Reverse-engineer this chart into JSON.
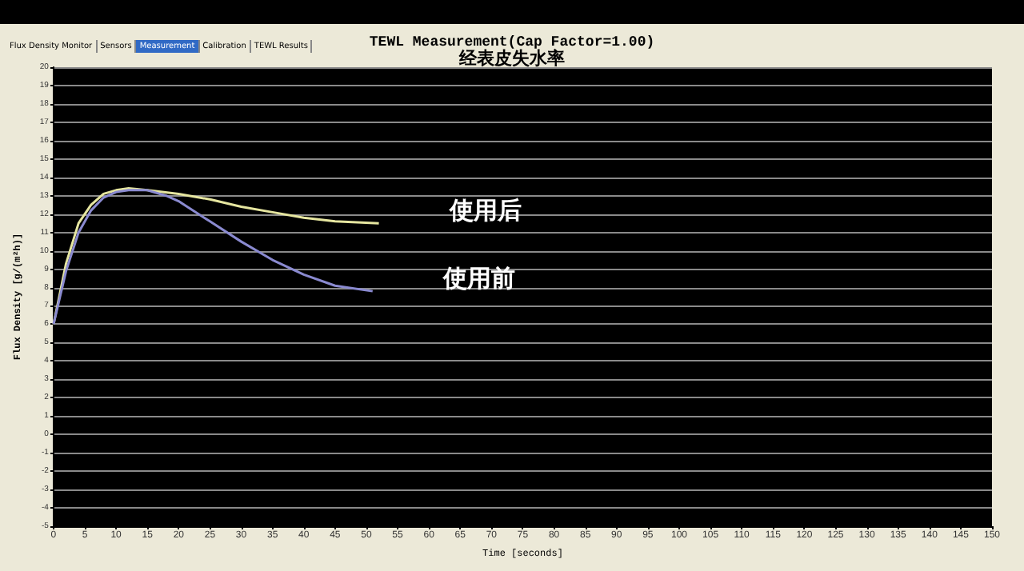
{
  "chart_data": {
    "type": "line",
    "title": "TEWL Measurement(Cap Factor=1.00)",
    "subtitle": "经表皮失水率",
    "xlabel": "Time [seconds]",
    "ylabel": "Flux Density [g/(m²h)]",
    "annotations": [
      "Flux Density Monitor",
      "Sensors",
      "Measurement",
      "Calibration",
      "TEWL Results"
    ],
    "xlim": [
      0,
      150
    ],
    "xticks": [
      0,
      5,
      10,
      15,
      20,
      25,
      30,
      35,
      40,
      45,
      50,
      55,
      60,
      65,
      70,
      75,
      80,
      85,
      90,
      95,
      100,
      105,
      110,
      115,
      120,
      125,
      130,
      135,
      140,
      145,
      150
    ],
    "ylim": [
      -5,
      20
    ],
    "yticks": [
      -5,
      -4,
      -3,
      -2,
      -1,
      0,
      1,
      2,
      3,
      4,
      5,
      6,
      7,
      8,
      9,
      10,
      11,
      12,
      13,
      14,
      15,
      16,
      17,
      18,
      19,
      20
    ],
    "grid": "y",
    "marker": "none",
    "series": [
      {
        "name": "使用后",
        "color": "#e6e6a0",
        "x": [
          0,
          2,
          4,
          6,
          8,
          10,
          12,
          15,
          20,
          25,
          30,
          35,
          40,
          45,
          52
        ],
        "values": [
          6,
          9.3,
          11.5,
          12.5,
          13.1,
          13.3,
          13.4,
          13.3,
          13.1,
          12.8,
          12.4,
          12.1,
          11.8,
          11.6,
          11.5
        ]
      },
      {
        "name": "使用前",
        "color": "#8a8ad0",
        "x": [
          0,
          2,
          4,
          6,
          8,
          10,
          12,
          15,
          18,
          20,
          25,
          30,
          35,
          40,
          45,
          51
        ],
        "values": [
          6,
          8.9,
          11,
          12.2,
          12.9,
          13.2,
          13.3,
          13.3,
          13,
          12.7,
          11.6,
          10.5,
          9.5,
          8.7,
          8.1,
          7.8
        ]
      }
    ]
  }
}
